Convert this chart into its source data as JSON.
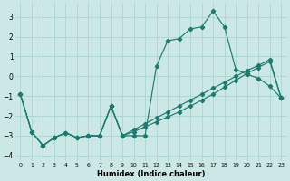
{
  "xlabel": "Humidex (Indice chaleur)",
  "bg_color": "#cce8e6",
  "grid_color": "#aad4d0",
  "line_color": "#1e7a6e",
  "xlim": [
    -0.5,
    23.5
  ],
  "ylim": [
    -4.3,
    3.7
  ],
  "xticks": [
    0,
    1,
    2,
    3,
    4,
    5,
    6,
    7,
    8,
    9,
    10,
    11,
    12,
    13,
    14,
    15,
    16,
    17,
    18,
    19,
    20,
    21,
    22,
    23
  ],
  "yticks": [
    -4,
    -3,
    -2,
    -1,
    0,
    1,
    2,
    3
  ],
  "series1_x": [
    0,
    1,
    2,
    3,
    4,
    5,
    6,
    7,
    8,
    9,
    10,
    11,
    12,
    13,
    14,
    15,
    16,
    17,
    18,
    19,
    20,
    21,
    22,
    23
  ],
  "series1_y": [
    -0.9,
    -2.8,
    -3.5,
    -3.1,
    -2.85,
    -3.1,
    -3.0,
    -3.0,
    -1.5,
    -3.0,
    -3.0,
    -3.0,
    0.5,
    1.8,
    1.9,
    2.4,
    2.5,
    3.3,
    2.5,
    0.35,
    0.1,
    -0.1,
    -0.5,
    -1.1
  ],
  "series2_x": [
    0,
    1,
    2,
    3,
    4,
    5,
    6,
    7,
    8,
    9,
    10,
    11,
    12,
    13,
    14,
    15,
    16,
    17,
    18,
    19,
    20,
    21,
    22,
    23
  ],
  "series2_y": [
    -0.9,
    -2.8,
    -3.5,
    -3.1,
    -2.85,
    -3.1,
    -3.0,
    -3.0,
    -1.5,
    -3.0,
    -2.8,
    -2.55,
    -2.3,
    -2.05,
    -1.8,
    -1.5,
    -1.2,
    -0.9,
    -0.55,
    -0.2,
    0.15,
    0.45,
    0.75,
    -1.1
  ],
  "series3_x": [
    0,
    1,
    2,
    3,
    4,
    5,
    6,
    7,
    8,
    9,
    10,
    11,
    12,
    13,
    14,
    15,
    16,
    17,
    18,
    19,
    20,
    21,
    22,
    23
  ],
  "series3_y": [
    -0.9,
    -2.8,
    -3.5,
    -3.1,
    -2.85,
    -3.1,
    -3.0,
    -3.0,
    -1.5,
    -3.0,
    -2.7,
    -2.4,
    -2.1,
    -1.8,
    -1.5,
    -1.2,
    -0.9,
    -0.6,
    -0.3,
    0.0,
    0.3,
    0.55,
    0.85,
    -1.1
  ]
}
